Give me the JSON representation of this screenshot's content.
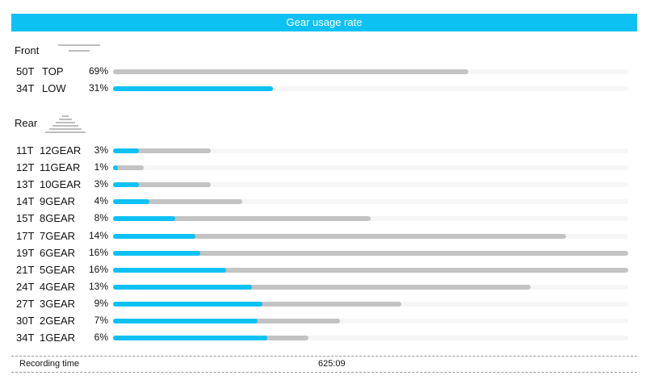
{
  "header": {
    "title": "Gear usage rate"
  },
  "colors": {
    "accent": "#0ec1f3",
    "bar_gray": "#c3c3c3",
    "track": "#f6f6f6"
  },
  "front": {
    "label": "Front",
    "icon": "chainring-icon",
    "rows": [
      {
        "teeth": "50T",
        "gear": "TOP",
        "pct": "69%",
        "blue_fraction": 0.0,
        "gray_fraction": 0.69
      },
      {
        "teeth": "34T",
        "gear": "LOW",
        "pct": "31%",
        "blue_fraction": 0.31,
        "gray_fraction": 0.31
      }
    ]
  },
  "rear": {
    "label": "Rear",
    "icon": "cassette-icon",
    "rows": [
      {
        "teeth": "11T",
        "gear": "12GEAR",
        "pct": "3%",
        "blue_fraction": 0.05,
        "gray_fraction": 0.19
      },
      {
        "teeth": "12T",
        "gear": "11GEAR",
        "pct": "1%",
        "blue_fraction": 0.01,
        "gray_fraction": 0.06
      },
      {
        "teeth": "13T",
        "gear": "10GEAR",
        "pct": "3%",
        "blue_fraction": 0.05,
        "gray_fraction": 0.19
      },
      {
        "teeth": "14T",
        "gear": "9GEAR",
        "pct": "4%",
        "blue_fraction": 0.07,
        "gray_fraction": 0.25
      },
      {
        "teeth": "15T",
        "gear": "8GEAR",
        "pct": "8%",
        "blue_fraction": 0.12,
        "gray_fraction": 0.5
      },
      {
        "teeth": "17T",
        "gear": "7GEAR",
        "pct": "14%",
        "blue_fraction": 0.16,
        "gray_fraction": 0.88
      },
      {
        "teeth": "19T",
        "gear": "6GEAR",
        "pct": "16%",
        "blue_fraction": 0.17,
        "gray_fraction": 1.0
      },
      {
        "teeth": "21T",
        "gear": "5GEAR",
        "pct": "16%",
        "blue_fraction": 0.22,
        "gray_fraction": 1.0
      },
      {
        "teeth": "24T",
        "gear": "4GEAR",
        "pct": "13%",
        "blue_fraction": 0.27,
        "gray_fraction": 0.81
      },
      {
        "teeth": "27T",
        "gear": "3GEAR",
        "pct": "9%",
        "blue_fraction": 0.29,
        "gray_fraction": 0.56
      },
      {
        "teeth": "30T",
        "gear": "2GEAR",
        "pct": "7%",
        "blue_fraction": 0.28,
        "gray_fraction": 0.44
      },
      {
        "teeth": "34T",
        "gear": "1GEAR",
        "pct": "6%",
        "blue_fraction": 0.3,
        "gray_fraction": 0.38
      }
    ]
  },
  "recording": {
    "label": "Recording time",
    "value": "625:09"
  }
}
